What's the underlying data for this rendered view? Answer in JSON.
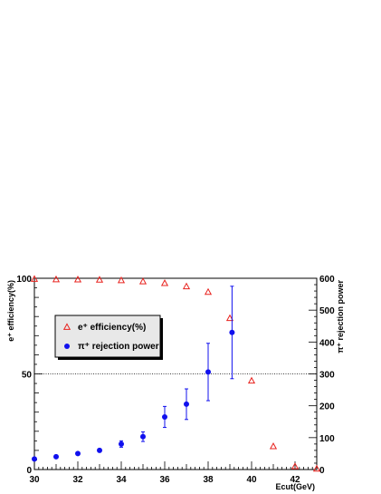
{
  "chart_data": {
    "type": "scatter",
    "x": [
      30,
      31,
      32,
      33,
      34,
      35,
      36,
      37,
      38,
      39,
      40,
      41,
      42,
      43
    ],
    "xlabel": "Ecut(GeV)",
    "ylabel_left": "e⁺ efficiency(%)",
    "ylabel_right": "π⁺ rejection power",
    "xlim": [
      30,
      43
    ],
    "ylim_left": [
      0,
      100
    ],
    "ylim_right": [
      0,
      600
    ],
    "x_ticks": [
      30,
      32,
      34,
      36,
      38,
      40,
      42
    ],
    "y_left_ticks": [
      0,
      50,
      100
    ],
    "y_right_ticks": [
      0,
      100,
      200,
      300,
      400,
      500,
      600
    ],
    "gridlines_left": [
      50,
      100
    ],
    "legend_position": "left",
    "series": [
      {
        "name": "e⁺ efficiency(%)",
        "axis": "left",
        "marker": "open-triangle",
        "color": "#e8231f",
        "x": [
          30,
          31,
          32,
          33,
          34,
          35,
          36,
          37,
          38,
          39,
          40,
          41,
          42,
          43
        ],
        "y": [
          99.5,
          99.3,
          99.2,
          99.1,
          98.8,
          98.2,
          97.3,
          95.6,
          92.7,
          79.0,
          46.3,
          12.0,
          1.5,
          0.3
        ]
      },
      {
        "name": "π⁺ rejection power",
        "axis": "right",
        "marker": "filled-circle",
        "color": "#1010ee",
        "x": [
          30,
          31,
          32,
          33,
          34,
          35,
          36,
          37,
          38,
          39.1
        ],
        "y": [
          33,
          40,
          50,
          60,
          80,
          103,
          165,
          205,
          306,
          430
        ],
        "err": [
          2,
          2,
          3,
          5,
          10,
          15,
          33,
          48,
          90,
          145
        ]
      }
    ]
  }
}
